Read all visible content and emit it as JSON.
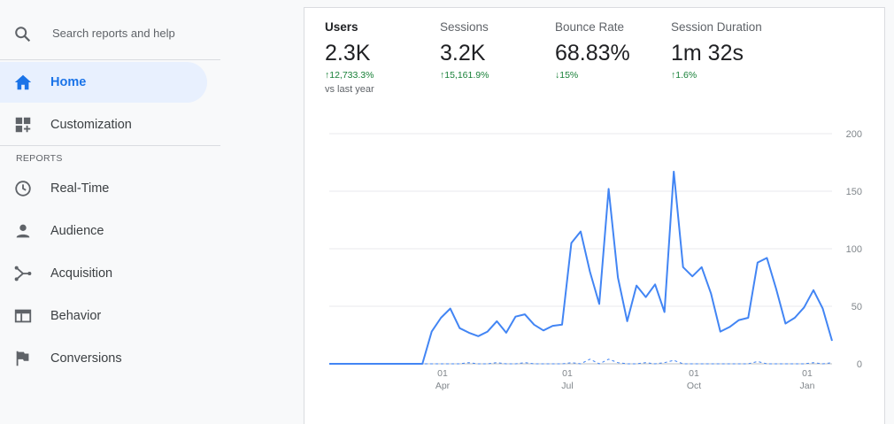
{
  "search": {
    "placeholder": "Search reports and help",
    "icon": "search-icon"
  },
  "nav": {
    "home": {
      "label": "Home",
      "icon": "home-icon"
    },
    "customization": {
      "label": "Customization",
      "icon": "dashboard-plus-icon"
    },
    "section_label": "REPORTS",
    "items": [
      {
        "label": "Real-Time",
        "icon": "clock-icon"
      },
      {
        "label": "Audience",
        "icon": "person-icon"
      },
      {
        "label": "Acquisition",
        "icon": "merge-icon"
      },
      {
        "label": "Behavior",
        "icon": "web-page-icon"
      },
      {
        "label": "Conversions",
        "icon": "flag-icon"
      }
    ]
  },
  "metrics": [
    {
      "label": "Users",
      "value": "2.3K",
      "delta": "↑12,733.3%",
      "note": "vs last year",
      "selected": true
    },
    {
      "label": "Sessions",
      "value": "3.2K",
      "delta": "↑15,161.9%"
    },
    {
      "label": "Bounce Rate",
      "value": "68.83%",
      "delta": "↓15%"
    },
    {
      "label": "Session Duration",
      "value": "1m 32s",
      "delta": "↑1.6%"
    }
  ],
  "colors": {
    "accent": "#1a73e8",
    "line": "#4285f4",
    "positive": "#188038"
  },
  "chart_data": {
    "type": "line",
    "y_ticks": [
      "200",
      "150",
      "100",
      "50",
      "0"
    ],
    "ylim": [
      0,
      200
    ],
    "x_tick_labels": [
      {
        "day": "01",
        "month": "Apr"
      },
      {
        "day": "01",
        "month": "Jul"
      },
      {
        "day": "01",
        "month": "Oct"
      },
      {
        "day": "01",
        "month": "Jan"
      }
    ],
    "series": [
      {
        "style": "solid",
        "values": [
          0,
          0,
          0,
          0,
          0,
          0,
          0,
          0,
          0,
          0,
          0,
          28,
          40,
          48,
          31,
          27,
          24,
          28,
          37,
          27,
          41,
          43,
          34,
          29,
          33,
          34,
          105,
          115,
          80,
          52,
          152,
          75,
          37,
          68,
          58,
          69,
          45,
          167,
          84,
          76,
          84,
          61,
          28,
          32,
          38,
          40,
          88,
          92,
          65,
          35,
          40,
          49,
          64,
          48,
          20
        ]
      },
      {
        "style": "dashed",
        "values": [
          0,
          0,
          0,
          0,
          0,
          0,
          0,
          0,
          0,
          0,
          0,
          0,
          0,
          0,
          0,
          1,
          0,
          0,
          1,
          0,
          0,
          1,
          0,
          0,
          0,
          0,
          1,
          0,
          4,
          0,
          4,
          1,
          0,
          0,
          1,
          0,
          1,
          3,
          0,
          0,
          0,
          0,
          0,
          0,
          0,
          0,
          2,
          0,
          0,
          0,
          0,
          0,
          1,
          0,
          1
        ]
      }
    ]
  }
}
